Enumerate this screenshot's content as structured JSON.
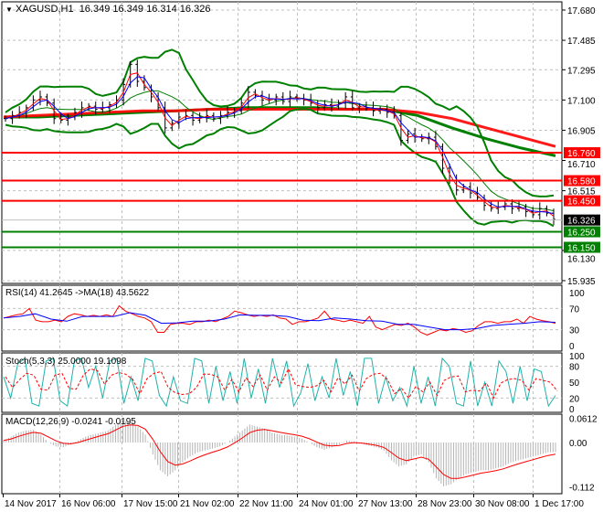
{
  "header": {
    "symbol": "XAGUSD,H1",
    "ohlc": "16.349 16.349 16.314 16.326"
  },
  "colors": {
    "bars": "#000000",
    "ma_fast": "#ff0000",
    "ma_mid": "#0000ff",
    "bands": "#008000",
    "ma_slow_red": "#ff0000",
    "ma_slow_green": "#008000",
    "resistance": "#ff0000",
    "support": "#008000",
    "current_price_bg": "#000000",
    "rsi": "#ff0000",
    "rsi_ma": "#0000ff",
    "stoch_main": "#20b2aa",
    "stoch_signal": "#ff0000",
    "macd_hist": "#b4b4b4",
    "macd_signal": "#ff0000",
    "grid": "#c0c0c0"
  },
  "time_axis": [
    "14 Nov 2017",
    "16 Nov 06:00",
    "17 Nov 15:00",
    "21 Nov 02:00",
    "22 Nov 11:00",
    "24 Nov 01:00",
    "27 Nov 13:00",
    "28 Nov 23:00",
    "30 Nov 08:00",
    "1 Dec 17:00"
  ],
  "chart_data": [
    {
      "type": "line",
      "pane": "price",
      "price_ticks": [
        "17.680",
        "17.485",
        "17.295",
        "17.100",
        "16.905",
        "16.710",
        "16.515",
        "16.130",
        "15.935"
      ],
      "ylim": [
        15.935,
        17.68
      ],
      "current_price": "16.326",
      "levels": [
        {
          "value": "16.760",
          "kind": "resistance"
        },
        {
          "value": "16.580",
          "kind": "resistance"
        },
        {
          "value": "16.450",
          "kind": "resistance"
        },
        {
          "value": "16.250",
          "kind": "support"
        },
        {
          "value": "16.150",
          "kind": "support"
        }
      ],
      "closes": [
        16.98,
        17.0,
        17.02,
        17.05,
        17.1,
        17.12,
        17.08,
        16.98,
        16.97,
        16.99,
        17.02,
        17.05,
        17.06,
        17.04,
        17.05,
        17.07,
        17.1,
        17.2,
        17.33,
        17.22,
        17.18,
        17.12,
        17.05,
        16.92,
        16.95,
        16.99,
        17.0,
        16.97,
        16.99,
        17.0,
        16.98,
        17.0,
        17.02,
        17.03,
        17.08,
        17.15,
        17.13,
        17.1,
        17.1,
        17.12,
        17.09,
        17.12,
        17.11,
        17.1,
        17.08,
        17.05,
        17.07,
        17.06,
        17.08,
        17.12,
        17.05,
        17.06,
        17.05,
        17.03,
        17.04,
        17.02,
        17.0,
        16.84,
        16.88,
        16.86,
        16.85,
        16.86,
        16.8,
        16.66,
        16.58,
        16.52,
        16.54,
        16.5,
        16.47,
        16.42,
        16.4,
        16.41,
        16.43,
        16.4,
        16.41,
        16.38,
        16.36,
        16.4,
        16.37,
        16.33
      ],
      "ma_slow_green": [
        16.99,
        16.99,
        17.0,
        17.01,
        17.02,
        17.03,
        17.04,
        17.05,
        17.05,
        17.05,
        17.04,
        17.04,
        17.0,
        16.92,
        16.85,
        16.79,
        16.74
      ],
      "ma_slow_red": [
        16.99,
        17.0,
        17.01,
        17.02,
        17.03,
        17.03,
        17.04,
        17.04,
        17.04,
        17.04,
        17.04,
        17.04,
        17.02,
        16.98,
        16.92,
        16.86,
        16.8
      ]
    },
    {
      "type": "line",
      "pane": "rsi",
      "label": "RSI(14) 41.2645  ->MA(18) 43.5622",
      "ticks": [
        "100",
        "70",
        "30",
        "0"
      ],
      "ylim": [
        0,
        100
      ],
      "rsi": [
        52,
        55,
        58,
        60,
        70,
        48,
        45,
        45,
        48,
        45,
        55,
        60,
        58,
        55,
        57,
        55,
        58,
        55,
        75,
        65,
        60,
        55,
        52,
        45,
        25,
        25,
        40,
        42,
        42,
        40,
        45,
        45,
        48,
        45,
        50,
        55,
        65,
        62,
        58,
        55,
        57,
        55,
        58,
        52,
        50,
        40,
        45,
        45,
        48,
        52,
        65,
        50,
        48,
        45,
        48,
        45,
        42,
        55,
        35,
        30,
        35,
        40,
        38,
        42,
        35,
        25,
        20,
        25,
        30,
        28,
        32,
        30,
        25,
        28,
        38,
        45,
        45,
        42,
        45,
        45,
        50,
        42,
        55,
        50,
        47,
        45,
        42
      ],
      "rsi_ma": [
        52,
        55,
        60,
        50,
        46,
        55,
        55,
        55,
        62,
        57,
        42,
        43,
        46,
        46,
        50,
        58,
        57,
        57,
        55,
        48,
        47,
        52,
        50,
        47,
        46,
        40,
        40,
        35,
        30,
        30,
        32,
        38,
        40,
        42,
        45,
        44
      ]
    },
    {
      "type": "line",
      "pane": "stochastic",
      "label": "Stoch(5,3,3) 25.0000 19.1098",
      "ticks": [
        "100",
        "80",
        "50",
        "20",
        "0"
      ],
      "ylim": [
        0,
        100
      ],
      "main": [
        60,
        20,
        85,
        95,
        10,
        5,
        90,
        95,
        15,
        5,
        90,
        95,
        40,
        80,
        20,
        90,
        95,
        10,
        60,
        15,
        95,
        90,
        25,
        5,
        60,
        15,
        10,
        95,
        90,
        10,
        80,
        15,
        70,
        10,
        95,
        20,
        75,
        10,
        95,
        40,
        90,
        5,
        30,
        85,
        15,
        60,
        20,
        95,
        25,
        70,
        5,
        95,
        95,
        10,
        60,
        15,
        40,
        5,
        80,
        10,
        60,
        5,
        95,
        80,
        10,
        5,
        90,
        5,
        50,
        5,
        90,
        70,
        10,
        80,
        15,
        75,
        70,
        5,
        25
      ],
      "signal_smoothing": 3
    },
    {
      "type": "bar",
      "pane": "macd",
      "label": "MACD(12,26,9) -0.0241 -0.0195",
      "ticks": [
        "0.0612",
        "0.00",
        "-0.112"
      ],
      "ylim": [
        -0.125,
        0.07
      ],
      "histogram": [
        0.005,
        0.015,
        0.025,
        0.03,
        0.032,
        0.02,
        0.0,
        -0.01,
        -0.012,
        -0.005,
        0.005,
        0.015,
        0.02,
        0.025,
        0.03,
        0.045,
        0.055,
        0.05,
        0.04,
        0.02,
        -0.03,
        -0.07,
        -0.085,
        -0.07,
        -0.05,
        -0.035,
        -0.025,
        -0.02,
        -0.015,
        -0.01,
        0.0,
        0.015,
        0.03,
        0.045,
        0.04,
        0.035,
        0.025,
        0.02,
        0.018,
        0.015,
        0.01,
        0.0,
        -0.012,
        -0.018,
        -0.012,
        -0.005,
        0.005,
        0.003,
        -0.003,
        -0.008,
        -0.012,
        -0.02,
        -0.045,
        -0.06,
        -0.055,
        -0.035,
        -0.03,
        -0.05,
        -0.09,
        -0.11,
        -0.105,
        -0.09,
        -0.08,
        -0.075,
        -0.07,
        -0.07,
        -0.065,
        -0.06,
        -0.05,
        -0.045,
        -0.04,
        -0.035,
        -0.03,
        -0.025,
        -0.024
      ]
    }
  ]
}
